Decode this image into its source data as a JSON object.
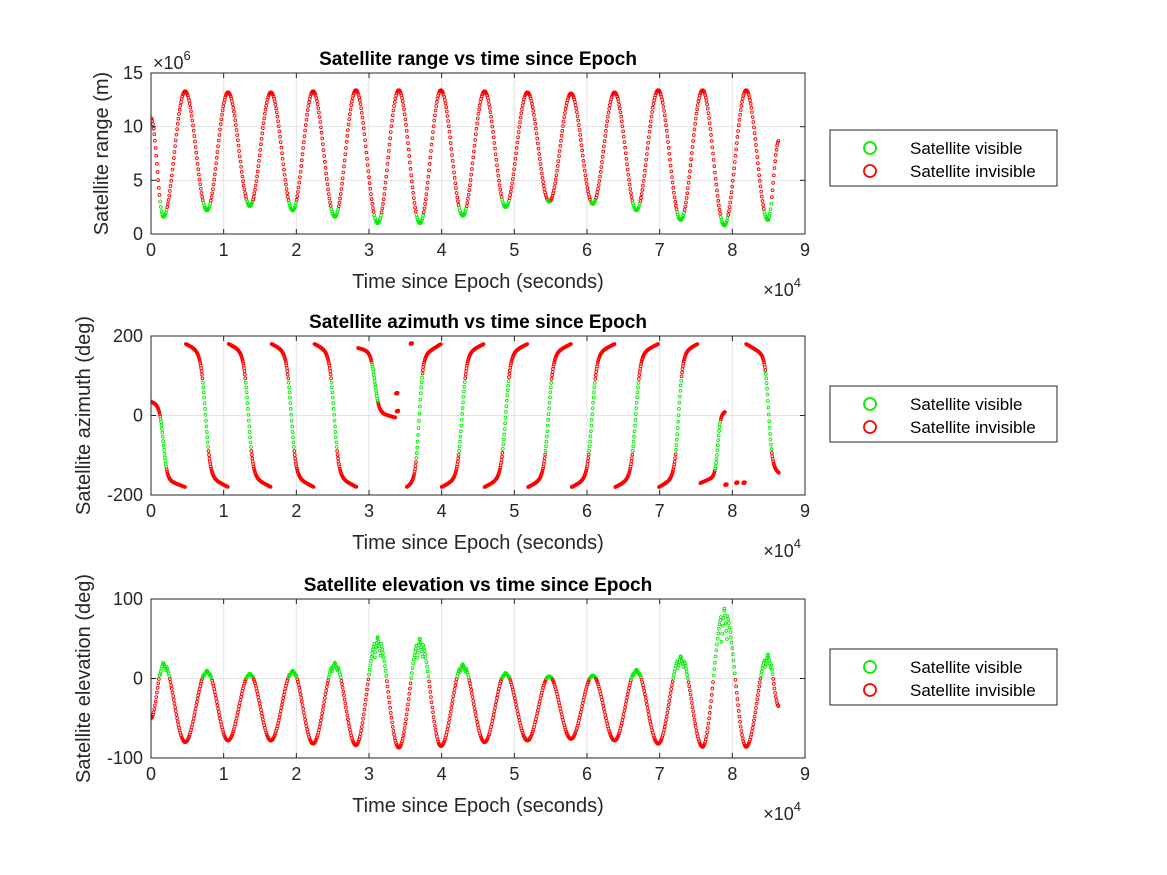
{
  "figure": {
    "background": "#ffffff",
    "legend_entries": [
      "Satellite visible",
      "Satellite invisible"
    ],
    "visible_color": "#00ee00",
    "invisible_color": "#ff0000",
    "exponent_base": "×10",
    "exponent_x": "4",
    "exponent_range": "6"
  },
  "chart_data": [
    {
      "type": "scatter",
      "title": "Satellite range vs time since Epoch",
      "xlabel": "Time since Epoch (seconds)",
      "ylabel": "Satellite range (m)",
      "xlim": [
        0,
        90000
      ],
      "ylim": [
        0,
        15000000
      ],
      "x_ticks": [
        "0",
        "1",
        "2",
        "3",
        "4",
        "5",
        "6",
        "7",
        "8",
        "9"
      ],
      "y_ticks": [
        "0",
        "5",
        "10",
        "15"
      ],
      "x_multiplier": "×10^4",
      "y_multiplier": "×10^6",
      "grid": true,
      "legend_placement": "outside-right",
      "series": [
        {
          "name": "Satellite visible",
          "color": "#00ee00"
        },
        {
          "name": "Satellite invisible",
          "color": "#ff0000"
        }
      ],
      "passes": [
        {
          "t": 1700,
          "min": 1600000.0
        },
        {
          "t": 7700,
          "min": 2200000.0
        },
        {
          "t": 13600,
          "min": 2600000.0
        },
        {
          "t": 19500,
          "min": 2200000.0
        },
        {
          "t": 25300,
          "min": 1600000.0
        },
        {
          "t": 31200,
          "min": 1000000.0
        },
        {
          "t": 37000,
          "min": 1000000.0
        },
        {
          "t": 42900,
          "min": 1700000.0
        },
        {
          "t": 48800,
          "min": 2500000.0
        },
        {
          "t": 54800,
          "min": 3000000.0
        },
        {
          "t": 60800,
          "min": 2800000.0
        },
        {
          "t": 66800,
          "min": 2200000.0
        },
        {
          "t": 72900,
          "min": 1300000.0
        },
        {
          "t": 78900,
          "min": 800000.0
        },
        {
          "t": 84900,
          "min": 1300000.0
        }
      ],
      "peaks": [
        {
          "t": 4700,
          "max": 13300000.0
        },
        {
          "t": 10600,
          "max": 13200000.0
        },
        {
          "t": 16500,
          "max": 13200000.0
        },
        {
          "t": 22300,
          "max": 13300000.0
        },
        {
          "t": 28200,
          "max": 13400000.0
        },
        {
          "t": 34100,
          "max": 13400000.0
        },
        {
          "t": 39900,
          "max": 13400000.0
        },
        {
          "t": 45900,
          "max": 13300000.0
        },
        {
          "t": 51800,
          "max": 13200000.0
        },
        {
          "t": 57800,
          "max": 13100000.0
        },
        {
          "t": 63800,
          "max": 13200000.0
        },
        {
          "t": 69800,
          "max": 13400000.0
        },
        {
          "t": 75900,
          "max": 13400000.0
        },
        {
          "t": 81900,
          "max": 13400000.0
        }
      ],
      "start": {
        "t": 0,
        "value": 10800000.0
      },
      "end": {
        "t": 86400,
        "value": 8700000.0
      }
    },
    {
      "type": "scatter",
      "title": "Satellite azimuth vs time since Epoch",
      "xlabel": "Time since Epoch (seconds)",
      "ylabel": "Satellite azimuth (deg)",
      "xlim": [
        0,
        90000
      ],
      "ylim": [
        -200,
        200
      ],
      "x_ticks": [
        "0",
        "1",
        "2",
        "3",
        "4",
        "5",
        "6",
        "7",
        "8",
        "9"
      ],
      "y_ticks": [
        "-200",
        "0",
        "200"
      ],
      "x_multiplier": "×10^4",
      "grid": true,
      "legend_placement": "outside-right",
      "series": [
        {
          "name": "Satellite visible",
          "color": "#00ee00"
        },
        {
          "name": "Satellite invisible",
          "color": "#ff0000"
        }
      ],
      "descending_passes": [
        {
          "t": 1700,
          "start": 35,
          "end": -180,
          "t0": 0,
          "t1": 4700
        },
        {
          "t": 7500,
          "start": 180,
          "end": -180,
          "t0": 4800,
          "t1": 10600
        },
        {
          "t": 13400,
          "start": 180,
          "end": -180,
          "t0": 10700,
          "t1": 16500
        },
        {
          "t": 19300,
          "start": 180,
          "end": -180,
          "t0": 16600,
          "t1": 22400
        },
        {
          "t": 25200,
          "start": 180,
          "end": -180,
          "t0": 22500,
          "t1": 28300
        },
        {
          "t": 30800,
          "start": 170,
          "end": -5,
          "t0": 28500,
          "t1": 33600
        }
      ],
      "ascending_passes": [
        {
          "t": 36900,
          "start": -180,
          "end": 180,
          "t0": 35200,
          "t1": 39900
        },
        {
          "t": 42800,
          "start": -180,
          "end": 180,
          "t0": 40000,
          "t1": 45800
        },
        {
          "t": 48800,
          "start": -180,
          "end": 180,
          "t0": 45900,
          "t1": 51800
        },
        {
          "t": 54700,
          "start": -180,
          "end": 180,
          "t0": 51900,
          "t1": 57800
        },
        {
          "t": 60700,
          "start": -180,
          "end": 180,
          "t0": 57900,
          "t1": 63800
        },
        {
          "t": 66700,
          "start": -180,
          "end": 180,
          "t0": 63900,
          "t1": 69800
        },
        {
          "t": 72600,
          "start": -180,
          "end": 180,
          "t0": 69900,
          "t1": 75200
        }
      ],
      "late_passes": [
        {
          "t": 78000,
          "start": -170,
          "end": 10,
          "t0": 75600,
          "t1": 79000
        },
        {
          "t": 85000,
          "start": 180,
          "end": -145,
          "t0": 81900,
          "t1": 86400
        }
      ],
      "isolated_points": [
        {
          "t": 35700,
          "value": 180
        },
        {
          "t": 33800,
          "value": 10
        },
        {
          "t": 33700,
          "value": 55
        },
        {
          "t": 79000,
          "value": -175
        },
        {
          "t": 80500,
          "value": -170
        },
        {
          "t": 81500,
          "value": -170
        }
      ]
    },
    {
      "type": "scatter",
      "title": "Satellite elevation vs time since Epoch",
      "xlabel": "Time since Epoch (seconds)",
      "ylabel": "Satellite elevation (deg)",
      "xlim": [
        0,
        90000
      ],
      "ylim": [
        -100,
        100
      ],
      "x_ticks": [
        "0",
        "1",
        "2",
        "3",
        "4",
        "5",
        "6",
        "7",
        "8",
        "9"
      ],
      "y_ticks": [
        "-100",
        "0",
        "100"
      ],
      "x_multiplier": "×10^4",
      "grid": true,
      "legend_placement": "outside-right",
      "series": [
        {
          "name": "Satellite visible",
          "color": "#00ee00"
        },
        {
          "name": "Satellite invisible",
          "color": "#ff0000"
        }
      ],
      "peaks": [
        {
          "t": 1700,
          "max": 20
        },
        {
          "t": 7700,
          "max": 10
        },
        {
          "t": 13600,
          "max": 6
        },
        {
          "t": 19500,
          "max": 10
        },
        {
          "t": 25300,
          "max": 20
        },
        {
          "t": 31200,
          "max": 52
        },
        {
          "t": 37000,
          "max": 50
        },
        {
          "t": 42900,
          "max": 18
        },
        {
          "t": 48800,
          "max": 7
        },
        {
          "t": 54800,
          "max": 3
        },
        {
          "t": 60800,
          "max": 4
        },
        {
          "t": 66800,
          "max": 11
        },
        {
          "t": 72900,
          "max": 28
        },
        {
          "t": 78900,
          "max": 88
        },
        {
          "t": 84900,
          "max": 30
        }
      ],
      "troughs": [
        {
          "t": 4700,
          "min": -80
        },
        {
          "t": 10600,
          "min": -78
        },
        {
          "t": 16500,
          "min": -78
        },
        {
          "t": 22300,
          "min": -82
        },
        {
          "t": 28200,
          "min": -84
        },
        {
          "t": 34100,
          "min": -87
        },
        {
          "t": 39900,
          "min": -85
        },
        {
          "t": 45900,
          "min": -80
        },
        {
          "t": 51800,
          "min": -78
        },
        {
          "t": 57800,
          "min": -76
        },
        {
          "t": 63800,
          "min": -78
        },
        {
          "t": 69800,
          "min": -82
        },
        {
          "t": 75900,
          "min": -86
        },
        {
          "t": 81900,
          "min": -86
        }
      ],
      "start": {
        "t": 0,
        "value": -50
      },
      "end": {
        "t": 86400,
        "value": -35
      }
    }
  ]
}
